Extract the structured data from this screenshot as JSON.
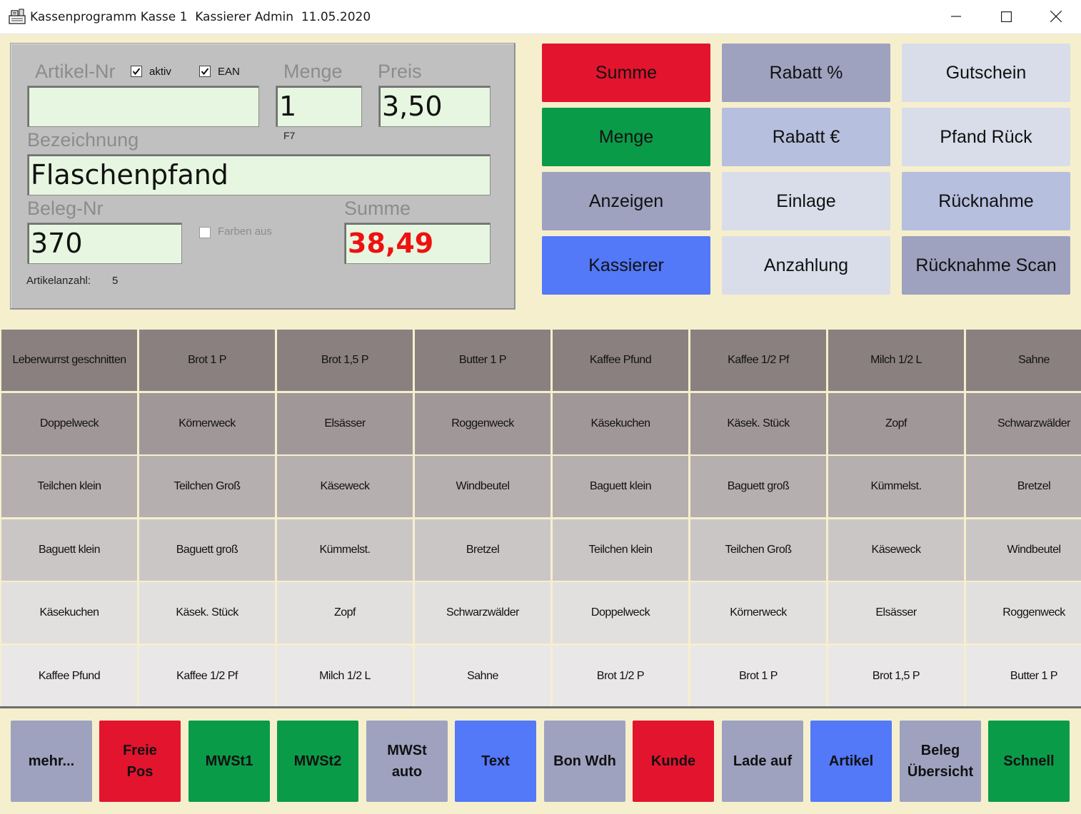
{
  "window": {
    "title": "Kassenprogramm Kasse 1  Kassierer Admin  11.05.2020"
  },
  "form": {
    "artikel_nr_label": "Artikel-Nr",
    "aktiv_label": "aktiv",
    "aktiv_checked": true,
    "ean_label": "EAN",
    "ean_checked": true,
    "artikel_nr_value": "",
    "menge_label": "Menge",
    "menge_value": "1",
    "menge_hint": "F7",
    "preis_label": "Preis",
    "preis_value": "3,50",
    "bezeichnung_label": "Bezeichnung",
    "bezeichnung_value": "Flaschenpfand",
    "beleg_nr_label": "Beleg-Nr",
    "beleg_nr_value": "370",
    "farben_aus_label": "Farben aus",
    "farben_aus_checked": false,
    "summe_label": "Summe",
    "summe_value": "38,49",
    "artikelanzahl_label": "Artikelanzahl:",
    "artikelanzahl_value": "5"
  },
  "function_buttons": [
    {
      "label": "Summe",
      "color": "#e3142e"
    },
    {
      "label": "Rabatt %",
      "color": "#9ea2bf"
    },
    {
      "label": "Gutschein",
      "color": "#d9dde9"
    },
    {
      "label": "Menge",
      "color": "#0a9b48"
    },
    {
      "label": "Rabatt €",
      "color": "#b6bfdd"
    },
    {
      "label": "Pfand Rück",
      "color": "#d9dde9"
    },
    {
      "label": "Anzeigen",
      "color": "#9ea2bf"
    },
    {
      "label": "Einlage",
      "color": "#d9dde9"
    },
    {
      "label": "Rücknahme",
      "color": "#b6bfdd"
    },
    {
      "label": "Kassierer",
      "color": "#5378f8"
    },
    {
      "label": "Anzahlung",
      "color": "#d9dde9"
    },
    {
      "label": "Rücknahme Scan",
      "color": "#9ea2bf"
    }
  ],
  "article_grid": {
    "row_colors": [
      "#8a8080",
      "#a09898",
      "#b6afaf",
      "#cbc6c6",
      "#e2dfdf",
      "#e9e7e7"
    ],
    "rows": [
      [
        "Leberwurrst geschnitten",
        "Brot 1 P",
        "Brot 1,5 P",
        "Butter 1 P",
        "Kaffee Pfund",
        "Kaffee 1/2 Pf",
        "Milch 1/2 L",
        "Sahne"
      ],
      [
        "Doppelweck",
        "Körnerweck",
        "Elsässer",
        "Roggenweck",
        "Käsekuchen",
        "Käsek. Stück",
        "Zopf",
        "Schwarzwälder"
      ],
      [
        "Teilchen klein",
        "Teilchen Groß",
        "Käseweck",
        "Windbeutel",
        "Baguett klein",
        "Baguett groß",
        "Kümmelst.",
        "Bretzel"
      ],
      [
        "Baguett klein",
        "Baguett groß",
        "Kümmelst.",
        "Bretzel",
        "Teilchen klein",
        "Teilchen Groß",
        "Käseweck",
        "Windbeutel"
      ],
      [
        "Käsekuchen",
        "Käsek. Stück",
        "Zopf",
        "Schwarzwälder",
        "Doppelweck",
        "Körnerweck",
        "Elsässer",
        "Roggenweck"
      ],
      [
        "Kaffee Pfund",
        "Kaffee 1/2 Pf",
        "Milch 1/2 L",
        "Sahne",
        "Brot 1/2 P",
        "Brot 1 P",
        "Brot 1,5 P",
        "Butter 1 P"
      ]
    ]
  },
  "bottom_buttons": [
    {
      "label": "mehr...",
      "color": "#9ea2bf"
    },
    {
      "label": "Freie\nPos",
      "color": "#e3142e"
    },
    {
      "label": "MWSt1",
      "color": "#0a9b48"
    },
    {
      "label": "MWSt2",
      "color": "#0a9b48"
    },
    {
      "label": "MWSt\nauto",
      "color": "#9ea2bf"
    },
    {
      "label": "Text",
      "color": "#5378f8"
    },
    {
      "label": "Bon Wdh",
      "color": "#9ea2bf"
    },
    {
      "label": "Kunde",
      "color": "#e3142e"
    },
    {
      "label": "Lade auf",
      "color": "#9ea2bf"
    },
    {
      "label": "Artikel",
      "color": "#5378f8"
    },
    {
      "label": "Beleg\nÜbersicht",
      "color": "#9ea2bf"
    },
    {
      "label": "Schnell",
      "color": "#0a9b48"
    }
  ]
}
